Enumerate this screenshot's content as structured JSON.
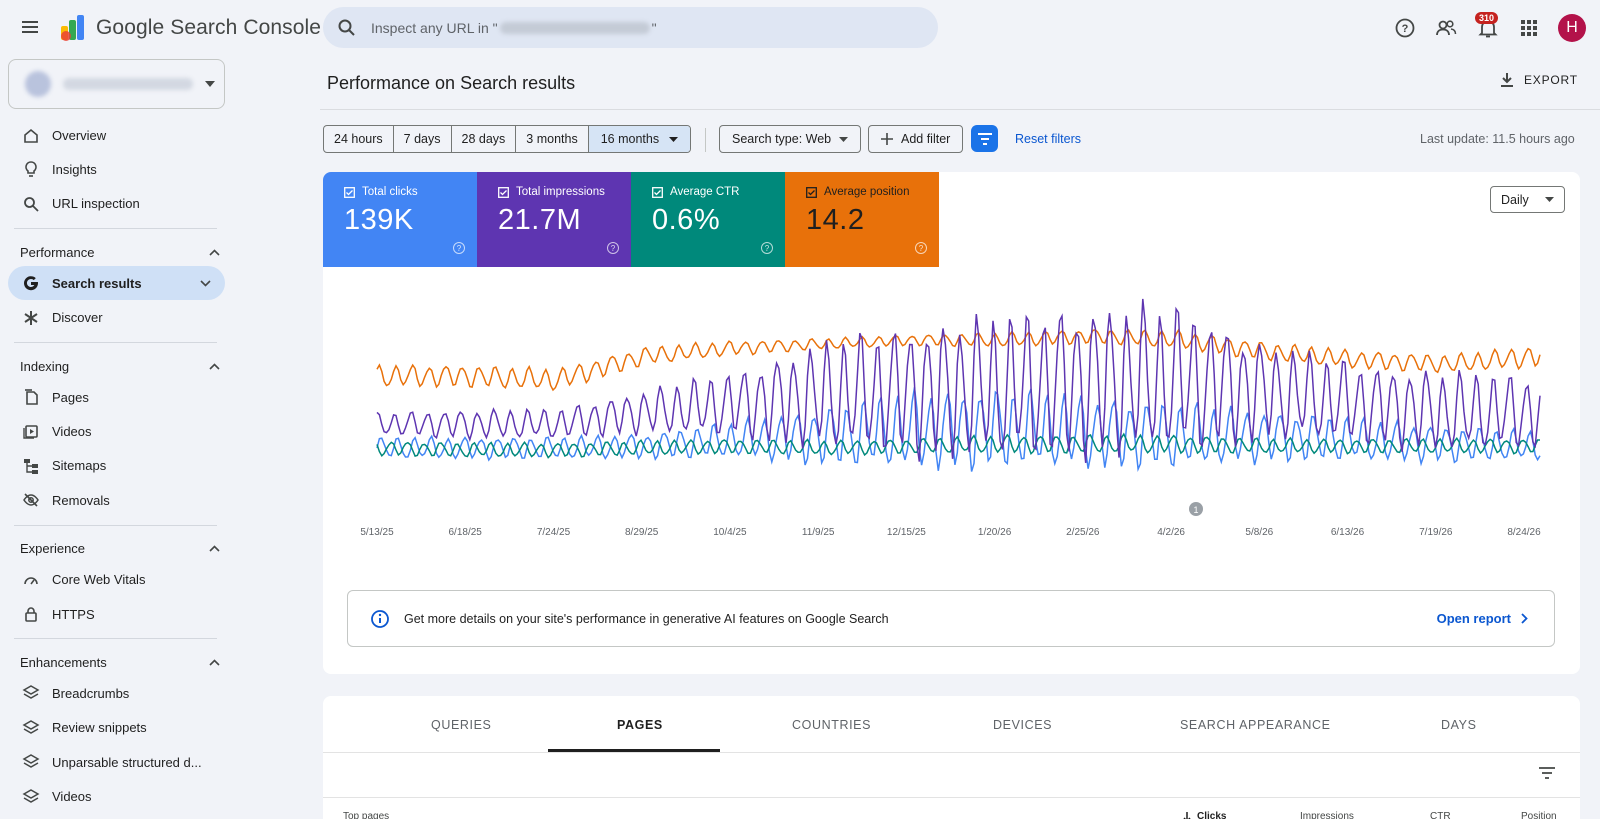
{
  "header": {
    "app_name": "Google Search Console",
    "search_placeholder_prefix": "Inspect any URL in \"",
    "search_placeholder_suffix": "\"",
    "notification_count": "310",
    "avatar_letter": "H"
  },
  "sidebar": {
    "top_items": [
      {
        "label": "Overview",
        "icon": "home-icon"
      },
      {
        "label": "Insights",
        "icon": "lightbulb-icon"
      },
      {
        "label": "URL inspection",
        "icon": "search-icon"
      }
    ],
    "sections": [
      {
        "label": "Performance",
        "items": [
          {
            "label": "Search results",
            "icon": "google-g-icon",
            "active": true
          },
          {
            "label": "Discover",
            "icon": "asterisk-icon"
          }
        ]
      },
      {
        "label": "Indexing",
        "items": [
          {
            "label": "Pages",
            "icon": "pages-icon"
          },
          {
            "label": "Videos",
            "icon": "video-library-icon"
          },
          {
            "label": "Sitemaps",
            "icon": "sitemap-icon"
          },
          {
            "label": "Removals",
            "icon": "visibility-off-icon"
          }
        ]
      },
      {
        "label": "Experience",
        "items": [
          {
            "label": "Core Web Vitals",
            "icon": "speed-icon"
          },
          {
            "label": "HTTPS",
            "icon": "lock-icon"
          }
        ]
      },
      {
        "label": "Enhancements",
        "items": [
          {
            "label": "Breadcrumbs",
            "icon": "layers-icon"
          },
          {
            "label": "Review snippets",
            "icon": "layers-icon"
          },
          {
            "label": "Unparsable structured d...",
            "icon": "layers-icon"
          },
          {
            "label": "Videos",
            "icon": "layers-icon"
          }
        ]
      }
    ]
  },
  "main": {
    "title": "Performance on Search results",
    "export_label": "EXPORT",
    "date_ranges": [
      "24 hours",
      "7 days",
      "28 days",
      "3 months",
      "16 months"
    ],
    "selected_range": "16 months",
    "search_type": "Search type: Web",
    "add_filter": "Add filter",
    "reset_filters": "Reset filters",
    "last_update": "Last update: 11.5 hours ago",
    "granularity": "Daily",
    "metrics": [
      {
        "label": "Total clicks",
        "value": "139K",
        "color": "#4285f4"
      },
      {
        "label": "Total impressions",
        "value": "21.7M",
        "color": "#5e35b1"
      },
      {
        "label": "Average CTR",
        "value": "0.6%",
        "color": "#00897b"
      },
      {
        "label": "Average position",
        "value": "14.2",
        "color": "#e8710a"
      }
    ],
    "annotation_marker": "1",
    "info_text": "Get more details on your site's performance in generative AI features on Google Search",
    "open_report": "Open report",
    "tabs": [
      "QUERIES",
      "PAGES",
      "COUNTRIES",
      "DEVICES",
      "SEARCH APPEARANCE",
      "DAYS"
    ],
    "active_tab": "PAGES",
    "table_headers": {
      "first": "Top pages",
      "clicks": "Clicks",
      "impressions": "Impressions",
      "ctr": "CTR",
      "position": "Position"
    }
  },
  "chart_data": {
    "type": "line",
    "x_tick_labels": [
      "5/13/25",
      "6/18/25",
      "7/24/25",
      "8/29/25",
      "10/4/25",
      "11/9/25",
      "12/15/25",
      "1/20/26",
      "2/25/26",
      "4/2/26",
      "5/8/26",
      "6/13/26",
      "7/19/26",
      "8/24/26"
    ],
    "series": [
      {
        "name": "Total clicks",
        "color": "#4285f4",
        "base": [
          0.16,
          0.16,
          0.16,
          0.17,
          0.2,
          0.22,
          0.25,
          0.26,
          0.24,
          0.22,
          0.22,
          0.2,
          0.18,
          0.17
        ],
        "amp": [
          0.06,
          0.06,
          0.06,
          0.07,
          0.1,
          0.16,
          0.22,
          0.22,
          0.2,
          0.18,
          0.14,
          0.12,
          0.1,
          0.08
        ]
      },
      {
        "name": "Total impressions",
        "color": "#5e35b1",
        "base": [
          0.28,
          0.28,
          0.28,
          0.34,
          0.38,
          0.42,
          0.45,
          0.46,
          0.5,
          0.5,
          0.44,
          0.38,
          0.34,
          0.34
        ],
        "amp": [
          0.06,
          0.08,
          0.08,
          0.12,
          0.18,
          0.3,
          0.36,
          0.4,
          0.42,
          0.4,
          0.26,
          0.22,
          0.22,
          0.2
        ]
      },
      {
        "name": "Average CTR",
        "color": "#00897b",
        "base": [
          0.16,
          0.15,
          0.15,
          0.16,
          0.17,
          0.16,
          0.17,
          0.18,
          0.18,
          0.18,
          0.17,
          0.17,
          0.17,
          0.17
        ],
        "amp": [
          0.04,
          0.04,
          0.04,
          0.04,
          0.04,
          0.04,
          0.04,
          0.05,
          0.05,
          0.05,
          0.04,
          0.04,
          0.04,
          0.04
        ]
      },
      {
        "name": "Average position",
        "color": "#e8710a",
        "base": [
          0.52,
          0.52,
          0.5,
          0.62,
          0.66,
          0.68,
          0.7,
          0.7,
          0.72,
          0.7,
          0.64,
          0.6,
          0.58,
          0.62
        ],
        "amp": [
          0.06,
          0.06,
          0.06,
          0.05,
          0.04,
          0.03,
          0.03,
          0.04,
          0.04,
          0.05,
          0.05,
          0.05,
          0.05,
          0.06
        ]
      }
    ]
  }
}
